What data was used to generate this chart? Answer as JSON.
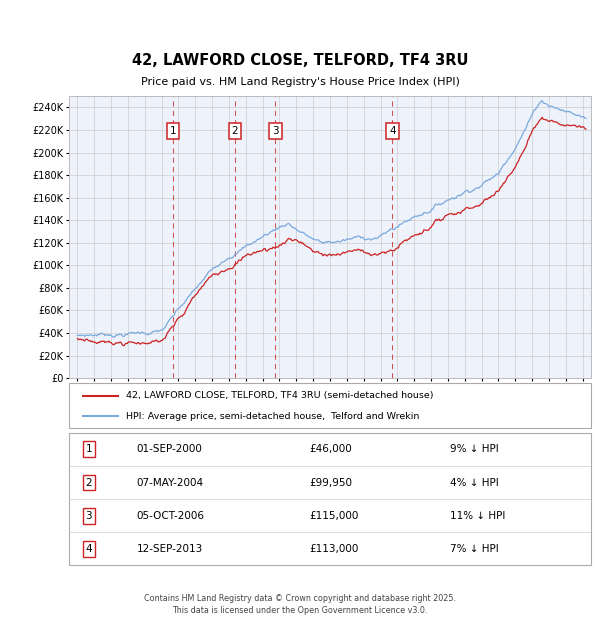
{
  "title": "42, LAWFORD CLOSE, TELFORD, TF4 3RU",
  "subtitle": "Price paid vs. HM Land Registry's House Price Index (HPI)",
  "footer": "Contains HM Land Registry data © Crown copyright and database right 2025.\nThis data is licensed under the Open Government Licence v3.0.",
  "legend_line1": "42, LAWFORD CLOSE, TELFORD, TF4 3RU (semi-detached house)",
  "legend_line2": "HPI: Average price, semi-detached house,  Telford and Wrekin",
  "sales": [
    {
      "num": 1,
      "date_str": "01-SEP-2000",
      "price": 46000,
      "pct": "9%",
      "x_year": 2000.67
    },
    {
      "num": 2,
      "date_str": "07-MAY-2004",
      "price": 99950,
      "pct": "4%",
      "x_year": 2004.35
    },
    {
      "num": 3,
      "date_str": "05-OCT-2006",
      "price": 115000,
      "pct": "11%",
      "x_year": 2006.75
    },
    {
      "num": 4,
      "date_str": "12-SEP-2013",
      "price": 113000,
      "pct": "7%",
      "x_year": 2013.7
    }
  ],
  "table_rows": [
    {
      "num": 1,
      "date": "01-SEP-2000",
      "price": "£46,000",
      "pct": "9% ↓ HPI"
    },
    {
      "num": 2,
      "date": "07-MAY-2004",
      "price": "£99,950",
      "pct": "4% ↓ HPI"
    },
    {
      "num": 3,
      "date": "05-OCT-2006",
      "price": "£115,000",
      "pct": "11% ↓ HPI"
    },
    {
      "num": 4,
      "date": "12-SEP-2013",
      "price": "£113,000",
      "pct": "7% ↓ HPI"
    }
  ],
  "hpi_color": "#7aaadd",
  "price_color": "#cc2222",
  "dashed_color": "#cc3333",
  "marker_box_color": "#cc2222",
  "background_color": "#ffffff",
  "plot_bg_color": "#eef2fb",
  "grid_color": "#cccccc",
  "ylim": [
    0,
    250000
  ],
  "yticks": [
    0,
    20000,
    40000,
    60000,
    80000,
    100000,
    120000,
    140000,
    160000,
    180000,
    200000,
    220000,
    240000
  ],
  "xlim_start": 1994.5,
  "xlim_end": 2025.5,
  "xticks": [
    1995,
    1996,
    1997,
    1998,
    1999,
    2000,
    2001,
    2002,
    2003,
    2004,
    2005,
    2006,
    2007,
    2008,
    2009,
    2010,
    2011,
    2012,
    2013,
    2014,
    2015,
    2016,
    2017,
    2018,
    2019,
    2020,
    2021,
    2022,
    2023,
    2024,
    2025
  ]
}
